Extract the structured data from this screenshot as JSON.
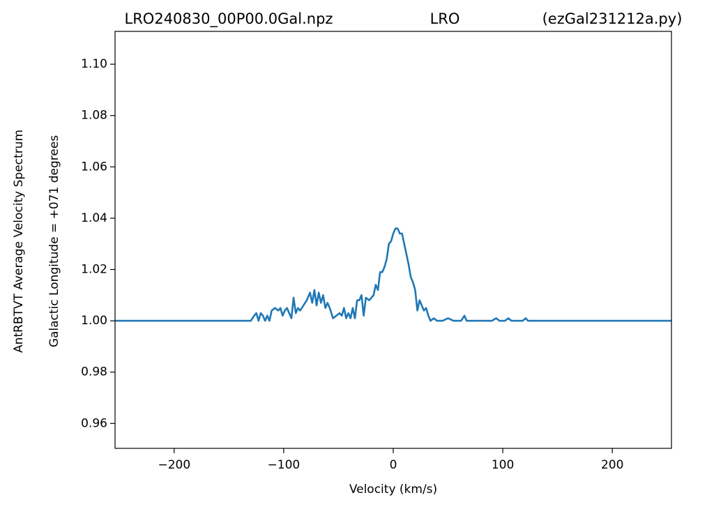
{
  "chart_data": {
    "type": "line",
    "title": [
      "LRO240830_00P00.0Gal.npz",
      "LRO",
      "(ezGal231212a.py)"
    ],
    "xlabel": "Velocity (km/s)",
    "ylabel": [
      "AntRBTVT Average Velocity Spectrum",
      "Galactic Longitude = +071 degrees"
    ],
    "xlim": [
      -254,
      254
    ],
    "ylim": [
      0.9503,
      1.1128
    ],
    "xticks": [
      {
        "value": -200,
        "label": "−200"
      },
      {
        "value": -100,
        "label": "−100"
      },
      0,
      100,
      200
    ],
    "yticks": [
      0.96,
      0.98,
      {
        "value": 1.0,
        "label": "1.00"
      },
      1.02,
      1.04,
      1.06,
      1.08,
      {
        "value": 1.1,
        "label": "1.10"
      }
    ],
    "x": [
      -254,
      -130,
      -127,
      -125,
      -123,
      -121,
      -119,
      -117,
      -115,
      -113,
      -111,
      -108,
      -105,
      -103,
      -101,
      -99,
      -97,
      -95,
      -93,
      -91,
      -89,
      -87,
      -85,
      -82,
      -79,
      -76,
      -74,
      -72,
      -70,
      -68,
      -66,
      -64,
      -62,
      -60,
      -58,
      -55,
      -52,
      -49,
      -47,
      -45,
      -43,
      -41,
      -39,
      -37,
      -35,
      -33,
      -31,
      -29,
      -27,
      -25,
      -22,
      -20,
      -18,
      -16,
      -14,
      -12,
      -10,
      -8,
      -6,
      -4,
      -2,
      0,
      2,
      4,
      6,
      8,
      10,
      12,
      14,
      16,
      18,
      20,
      22,
      24,
      26,
      28,
      30,
      32,
      34,
      37,
      40,
      45,
      50,
      55,
      62,
      65,
      67,
      90,
      94,
      97,
      102,
      105,
      108,
      118,
      121,
      123,
      254
    ],
    "series": [
      {
        "name": "spectrum",
        "color": "#1f77b4",
        "values": [
          1.0,
          1.0,
          1.002,
          1.003,
          1.0,
          1.003,
          1.002,
          1.0,
          1.002,
          1.0,
          1.004,
          1.005,
          1.004,
          1.005,
          1.002,
          1.004,
          1.005,
          1.003,
          1.001,
          1.009,
          1.003,
          1.005,
          1.004,
          1.006,
          1.008,
          1.011,
          1.007,
          1.012,
          1.006,
          1.011,
          1.007,
          1.01,
          1.005,
          1.007,
          1.005,
          1.001,
          1.002,
          1.003,
          1.002,
          1.005,
          1.001,
          1.003,
          1.001,
          1.005,
          1.001,
          1.008,
          1.008,
          1.01,
          1.002,
          1.009,
          1.008,
          1.009,
          1.01,
          1.014,
          1.012,
          1.019,
          1.019,
          1.021,
          1.024,
          1.03,
          1.031,
          1.034,
          1.036,
          1.036,
          1.034,
          1.034,
          1.03,
          1.026,
          1.022,
          1.017,
          1.015,
          1.012,
          1.004,
          1.008,
          1.006,
          1.004,
          1.005,
          1.002,
          1.0,
          1.001,
          1.0,
          1.0,
          1.001,
          1.0,
          1.0,
          1.002,
          1.0,
          1.0,
          1.001,
          1.0,
          1.0,
          1.001,
          1.0,
          1.0,
          1.001,
          1.0,
          1.0
        ]
      }
    ]
  }
}
